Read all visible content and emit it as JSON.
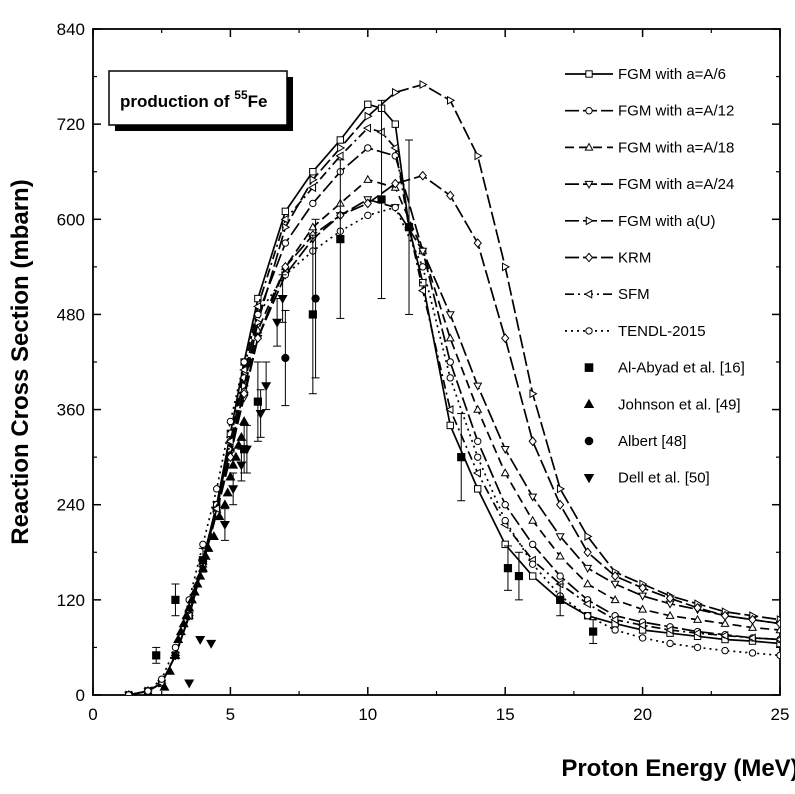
{
  "chart_data": {
    "type": "line",
    "xlabel": "Proton Energy (MeV)",
    "ylabel": "Reaction Cross Section (mbarn)",
    "xlim": [
      0,
      25
    ],
    "ylim": [
      0,
      840
    ],
    "xticks": [
      "0",
      "5",
      "10",
      "15",
      "20",
      "25"
    ],
    "yticks": [
      "0",
      "120",
      "240",
      "360",
      "480",
      "600",
      "720",
      "840"
    ],
    "inset_label": {
      "prefix": "production of ",
      "superscript": "55",
      "suffix": "Fe"
    },
    "legend_position": "right",
    "series": [
      {
        "name": "FGM with a=A/6",
        "marker": "square-open",
        "dash": "solid",
        "x": [
          1.3,
          2,
          2.5,
          3,
          3.5,
          4,
          4.5,
          5,
          5.5,
          6,
          7,
          8,
          9,
          10,
          10.5,
          11,
          11.5,
          12,
          13,
          14,
          15,
          16,
          17,
          18,
          19,
          20,
          21,
          22,
          23,
          24,
          25
        ],
        "y": [
          0,
          5,
          15,
          50,
          100,
          170,
          240,
          330,
          420,
          500,
          610,
          660,
          700,
          745,
          740,
          720,
          590,
          520,
          340,
          260,
          190,
          150,
          120,
          100,
          90,
          82,
          78,
          74,
          70,
          68,
          65
        ]
      },
      {
        "name": "FGM with a=A/12",
        "marker": "circle-open",
        "dash": "long-dash",
        "x": [
          1.3,
          2,
          2.5,
          3,
          3.5,
          4,
          4.5,
          5,
          5.5,
          6,
          7,
          8,
          9,
          10,
          11,
          12,
          13,
          14,
          15,
          16,
          17,
          18,
          19,
          20,
          21,
          22,
          23,
          24,
          25
        ],
        "y": [
          0,
          5,
          15,
          50,
          100,
          170,
          240,
          320,
          400,
          480,
          570,
          620,
          660,
          690,
          680,
          560,
          420,
          320,
          240,
          190,
          150,
          120,
          100,
          92,
          86,
          80,
          76,
          72,
          70
        ]
      },
      {
        "name": "FGM with a=A/18",
        "marker": "triangle-up-open",
        "dash": "dash",
        "x": [
          1.3,
          2,
          2.5,
          3,
          3.5,
          4,
          4.5,
          5,
          5.5,
          6,
          7,
          8,
          9,
          10,
          11,
          12,
          13,
          14,
          15,
          16,
          17,
          18,
          19,
          20,
          21,
          22,
          23,
          24,
          25
        ],
        "y": [
          0,
          5,
          15,
          50,
          100,
          165,
          235,
          310,
          385,
          460,
          540,
          590,
          620,
          650,
          640,
          560,
          450,
          360,
          280,
          220,
          175,
          140,
          120,
          108,
          100,
          95,
          90,
          85,
          82
        ]
      },
      {
        "name": "FGM with a=A/24",
        "marker": "triangle-down-open",
        "dash": "long-dash",
        "x": [
          1.3,
          2,
          2.5,
          3,
          3.5,
          4,
          4.5,
          5,
          5.5,
          6,
          7,
          8,
          9,
          10,
          11,
          12,
          13,
          14,
          15,
          16,
          17,
          18,
          19,
          20,
          21,
          22,
          23,
          24,
          25
        ],
        "y": [
          0,
          5,
          15,
          50,
          100,
          165,
          230,
          305,
          375,
          450,
          530,
          575,
          605,
          625,
          615,
          560,
          480,
          390,
          310,
          250,
          200,
          160,
          140,
          125,
          115,
          108,
          100,
          95,
          90
        ]
      },
      {
        "name": "FGM with a(U)",
        "marker": "triangle-right-open",
        "dash": "long-dash",
        "x": [
          1.3,
          2,
          2.5,
          3,
          3.5,
          4,
          4.5,
          5,
          5.5,
          6,
          7,
          8,
          9,
          10,
          11,
          12,
          13,
          14,
          15,
          16,
          17,
          18,
          19,
          20,
          21,
          22,
          23,
          24,
          25
        ],
        "y": [
          0,
          5,
          15,
          50,
          100,
          165,
          230,
          310,
          390,
          470,
          590,
          650,
          690,
          730,
          760,
          770,
          750,
          680,
          540,
          380,
          260,
          200,
          155,
          140,
          125,
          115,
          105,
          100,
          95
        ]
      },
      {
        "name": "KRM",
        "marker": "diamond-open",
        "dash": "long-dash",
        "x": [
          1.3,
          2,
          2.5,
          3,
          3.5,
          4,
          4.5,
          5,
          5.5,
          6,
          7,
          8,
          9,
          10,
          11,
          12,
          13,
          14,
          15,
          16,
          17,
          18,
          19,
          20,
          21,
          22,
          23,
          24,
          25
        ],
        "y": [
          0,
          5,
          15,
          50,
          100,
          165,
          230,
          300,
          380,
          450,
          540,
          580,
          605,
          620,
          645,
          655,
          630,
          570,
          450,
          320,
          240,
          180,
          150,
          135,
          122,
          110,
          100,
          95,
          90
        ]
      },
      {
        "name": "SFM",
        "marker": "triangle-left-open",
        "dash": "dash-dot",
        "x": [
          1.3,
          2,
          2.5,
          3,
          3.5,
          4,
          4.5,
          5,
          5.5,
          6,
          7,
          8,
          9,
          10,
          10.5,
          11,
          11.5,
          12,
          13,
          14,
          15,
          16,
          17,
          18,
          19,
          20,
          21,
          22,
          23,
          24,
          25
        ],
        "y": [
          0,
          5,
          15,
          50,
          100,
          165,
          235,
          320,
          410,
          490,
          600,
          640,
          680,
          715,
          710,
          690,
          590,
          510,
          360,
          280,
          215,
          170,
          140,
          115,
          95,
          88,
          82,
          78,
          75,
          72,
          70
        ]
      },
      {
        "name": "TENDL-2015",
        "marker": "circle-open",
        "dash": "dot",
        "x": [
          1.3,
          2,
          2.5,
          3,
          3.5,
          4,
          4.5,
          5,
          5.5,
          6,
          7,
          8,
          9,
          10,
          11,
          12,
          13,
          14,
          15,
          16,
          17,
          18,
          19,
          20,
          21,
          22,
          23,
          24,
          25
        ],
        "y": [
          0,
          5,
          20,
          60,
          120,
          190,
          260,
          345,
          420,
          480,
          530,
          560,
          585,
          605,
          615,
          540,
          400,
          300,
          220,
          165,
          125,
          100,
          82,
          72,
          65,
          60,
          56,
          53,
          50
        ]
      }
    ],
    "experimental": [
      {
        "name": "Al-Abyad et al. [16]",
        "marker": "square-filled",
        "x": [
          2.3,
          3.0,
          4.0,
          5.5,
          6.0,
          8.0,
          9.0,
          10.5,
          11.5,
          13.4,
          15.1,
          15.5,
          17.0,
          18.2
        ],
        "y": [
          50,
          120,
          170,
          310,
          370,
          480,
          575,
          625,
          590,
          300,
          160,
          150,
          120,
          80
        ],
        "err": [
          10,
          20,
          15,
          30,
          50,
          100,
          100,
          125,
          110,
          55,
          28,
          30,
          20,
          15
        ]
      },
      {
        "name": "Johnson et al. [49]",
        "marker": "triangle-up-filled",
        "x": [
          2.6,
          2.8,
          3.0,
          3.1,
          3.2,
          3.3,
          3.4,
          3.5,
          3.6,
          3.7,
          3.8,
          3.9,
          4.0,
          4.1,
          4.2,
          4.4,
          4.6,
          4.8,
          4.9,
          5.0,
          5.1,
          5.2,
          5.3,
          5.4,
          5.5
        ],
        "y": [
          10,
          30,
          50,
          70,
          80,
          90,
          100,
          110,
          120,
          130,
          140,
          150,
          160,
          175,
          185,
          200,
          225,
          240,
          255,
          275,
          290,
          300,
          315,
          325,
          345
        ]
      },
      {
        "name": "Albert [48]",
        "marker": "circle-filled",
        "x": [
          7.0,
          8.1
        ],
        "y": [
          425,
          500
        ],
        "err": [
          60,
          100
        ]
      },
      {
        "name": "Dell et al. [50]",
        "marker": "triangle-down-filled",
        "x": [
          3.5,
          3.9,
          4.3,
          4.8,
          5.1,
          5.4,
          5.6,
          6.1,
          6.3,
          6.7,
          6.9
        ],
        "y": [
          15,
          70,
          65,
          215,
          260,
          290,
          310,
          355,
          390,
          470,
          500
        ],
        "err": [
          0,
          0,
          0,
          20,
          20,
          20,
          30,
          30,
          30,
          30,
          30
        ]
      }
    ]
  }
}
